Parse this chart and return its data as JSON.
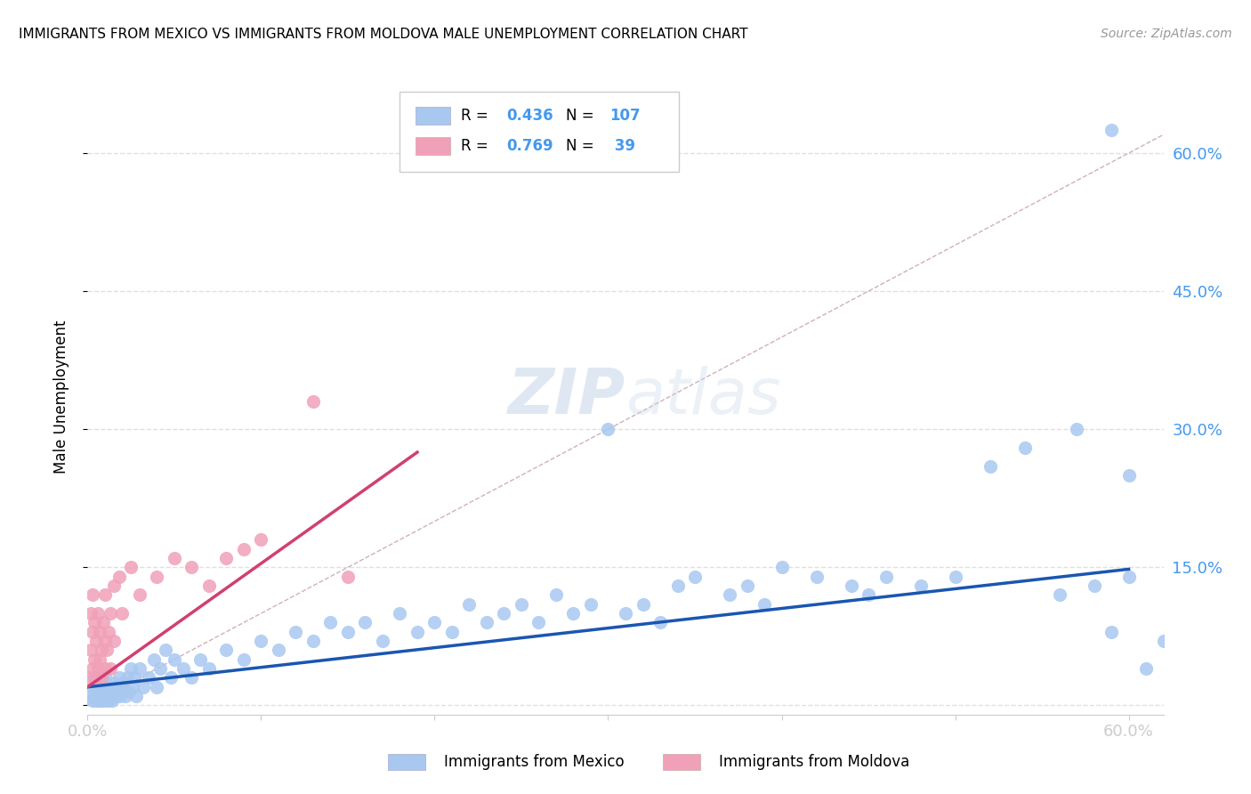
{
  "title": "IMMIGRANTS FROM MEXICO VS IMMIGRANTS FROM MOLDOVA MALE UNEMPLOYMENT CORRELATION CHART",
  "source": "Source: ZipAtlas.com",
  "ylabel": "Male Unemployment",
  "xlim": [
    0.0,
    0.62
  ],
  "ylim": [
    -0.01,
    0.68
  ],
  "ytick_values": [
    0.0,
    0.15,
    0.3,
    0.45,
    0.6
  ],
  "xtick_values": [
    0.0,
    0.1,
    0.2,
    0.3,
    0.4,
    0.5,
    0.6
  ],
  "mexico_color": "#a8c8f0",
  "moldova_color": "#f0a0b8",
  "mexico_line_color": "#1a56b0",
  "moldova_line_color": "#d04070",
  "diagonal_color": "#d0b0b8",
  "R_mexico": 0.436,
  "N_mexico": 107,
  "R_moldova": 0.769,
  "N_moldova": 39,
  "background_color": "#ffffff",
  "grid_color": "#e0e0e0",
  "mexico_x": [
    0.002,
    0.003,
    0.003,
    0.004,
    0.004,
    0.005,
    0.005,
    0.005,
    0.006,
    0.006,
    0.006,
    0.007,
    0.007,
    0.007,
    0.008,
    0.008,
    0.008,
    0.009,
    0.009,
    0.01,
    0.01,
    0.01,
    0.01,
    0.011,
    0.011,
    0.012,
    0.012,
    0.013,
    0.013,
    0.014,
    0.015,
    0.015,
    0.016,
    0.017,
    0.018,
    0.019,
    0.02,
    0.021,
    0.022,
    0.023,
    0.024,
    0.025,
    0.026,
    0.027,
    0.028,
    0.03,
    0.032,
    0.035,
    0.038,
    0.04,
    0.042,
    0.045,
    0.048,
    0.05,
    0.055,
    0.06,
    0.065,
    0.07,
    0.08,
    0.09,
    0.1,
    0.11,
    0.12,
    0.13,
    0.14,
    0.15,
    0.16,
    0.17,
    0.18,
    0.19,
    0.2,
    0.21,
    0.22,
    0.23,
    0.24,
    0.25,
    0.26,
    0.27,
    0.28,
    0.29,
    0.3,
    0.31,
    0.32,
    0.33,
    0.34,
    0.35,
    0.37,
    0.38,
    0.39,
    0.4,
    0.42,
    0.44,
    0.45,
    0.46,
    0.48,
    0.5,
    0.52,
    0.54,
    0.56,
    0.57,
    0.58,
    0.59,
    0.6,
    0.61,
    0.62,
    0.59,
    0.6
  ],
  "mexico_y": [
    0.01,
    0.02,
    0.005,
    0.01,
    0.03,
    0.005,
    0.015,
    0.02,
    0.01,
    0.025,
    0.005,
    0.01,
    0.02,
    0.005,
    0.015,
    0.03,
    0.005,
    0.01,
    0.02,
    0.005,
    0.015,
    0.025,
    0.03,
    0.01,
    0.02,
    0.005,
    0.015,
    0.01,
    0.02,
    0.005,
    0.015,
    0.025,
    0.01,
    0.02,
    0.03,
    0.01,
    0.02,
    0.025,
    0.01,
    0.03,
    0.015,
    0.04,
    0.02,
    0.03,
    0.01,
    0.04,
    0.02,
    0.03,
    0.05,
    0.02,
    0.04,
    0.06,
    0.03,
    0.05,
    0.04,
    0.03,
    0.05,
    0.04,
    0.06,
    0.05,
    0.07,
    0.06,
    0.08,
    0.07,
    0.09,
    0.08,
    0.09,
    0.07,
    0.1,
    0.08,
    0.09,
    0.08,
    0.11,
    0.09,
    0.1,
    0.11,
    0.09,
    0.12,
    0.1,
    0.11,
    0.3,
    0.1,
    0.11,
    0.09,
    0.13,
    0.14,
    0.12,
    0.13,
    0.11,
    0.15,
    0.14,
    0.13,
    0.12,
    0.14,
    0.13,
    0.14,
    0.26,
    0.28,
    0.12,
    0.3,
    0.13,
    0.08,
    0.14,
    0.04,
    0.07,
    0.625,
    0.25
  ],
  "moldova_x": [
    0.001,
    0.002,
    0.002,
    0.003,
    0.003,
    0.003,
    0.004,
    0.004,
    0.005,
    0.005,
    0.006,
    0.006,
    0.007,
    0.007,
    0.008,
    0.008,
    0.009,
    0.01,
    0.01,
    0.01,
    0.011,
    0.012,
    0.013,
    0.013,
    0.015,
    0.015,
    0.018,
    0.02,
    0.025,
    0.03,
    0.04,
    0.05,
    0.06,
    0.07,
    0.08,
    0.09,
    0.1,
    0.13,
    0.15
  ],
  "moldova_y": [
    0.03,
    0.06,
    0.1,
    0.04,
    0.08,
    0.12,
    0.05,
    0.09,
    0.03,
    0.07,
    0.04,
    0.1,
    0.05,
    0.08,
    0.03,
    0.06,
    0.09,
    0.04,
    0.07,
    0.12,
    0.06,
    0.08,
    0.04,
    0.1,
    0.13,
    0.07,
    0.14,
    0.1,
    0.15,
    0.12,
    0.14,
    0.16,
    0.15,
    0.13,
    0.16,
    0.17,
    0.18,
    0.33,
    0.14
  ]
}
